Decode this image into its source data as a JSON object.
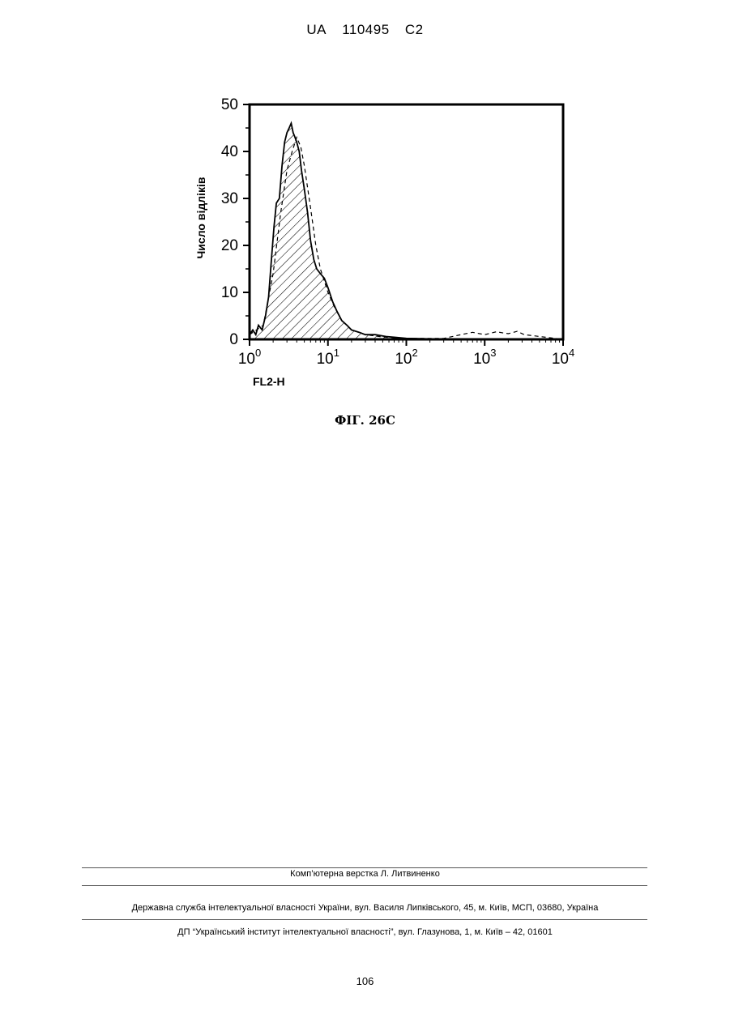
{
  "header": {
    "country": "UA",
    "number": "110495",
    "kind": "C2"
  },
  "chart_data": {
    "type": "area",
    "title": "",
    "xlabel": "FL2-H",
    "ylabel": "Число відліків",
    "xscale": "log",
    "xlim": [
      1,
      10000
    ],
    "ylim": [
      0,
      50
    ],
    "yticks": [
      "0",
      "10",
      "20",
      "30",
      "40",
      "50"
    ],
    "xticks": [
      {
        "base": "10",
        "exp": "0"
      },
      {
        "base": "10",
        "exp": "1"
      },
      {
        "base": "10",
        "exp": "2"
      },
      {
        "base": "10",
        "exp": "3"
      },
      {
        "base": "10",
        "exp": "4"
      }
    ],
    "grid": false,
    "series": [
      {
        "style": "solid-hatched",
        "x": [
          1.0,
          1.1,
          1.2,
          1.3,
          1.45,
          1.6,
          1.75,
          1.9,
          2.05,
          2.2,
          2.4,
          2.6,
          2.8,
          3.0,
          3.2,
          3.4,
          3.6,
          3.8,
          4.0,
          4.3,
          4.6,
          5.0,
          5.5,
          6.0,
          6.6,
          7.2,
          8.0,
          9.0,
          10.0,
          11.5,
          13.0,
          15.0,
          17.5,
          20.0,
          25.0,
          30.0,
          40.0,
          55.0,
          75.0,
          100.0,
          200.0,
          500.0,
          1000.0,
          3000.0,
          10000.0
        ],
        "y": [
          1,
          2,
          1,
          3,
          2,
          5,
          9,
          17,
          24,
          29,
          30,
          37,
          42,
          44,
          45,
          46,
          44,
          43,
          42,
          40,
          36,
          32,
          27,
          21,
          17,
          15,
          14,
          13,
          11,
          8,
          6,
          4,
          3,
          2,
          1.5,
          1,
          1,
          0.6,
          0.4,
          0.2,
          0.1,
          0.1,
          0,
          0,
          0
        ]
      },
      {
        "style": "dashed",
        "x": [
          1.0,
          1.5,
          2.0,
          2.5,
          3.0,
          3.5,
          4.0,
          4.5,
          5.0,
          6.0,
          7.0,
          8.0,
          10.0,
          12.0,
          15.0,
          20.0,
          30.0,
          50.0,
          100.0,
          300.0,
          500.0,
          700.0,
          1000.0,
          1400.0,
          2000.0,
          2600.0,
          3200.0,
          10000.0
        ],
        "y": [
          1,
          3,
          14,
          27,
          36,
          40,
          43,
          41,
          37,
          28,
          20,
          15,
          10,
          7,
          4,
          2,
          1,
          0.5,
          0.2,
          0.2,
          1,
          1.5,
          1,
          1.6,
          1.2,
          1.7,
          1,
          0
        ]
      }
    ]
  },
  "figure_caption": "ФІГ. 26С",
  "footer": {
    "layout": "Комп’ютерна верстка Л. Литвиненко",
    "agency": "Державна служба інтелектуальної власності України, вул. Василя Липківського, 45, м. Київ, МСП, 03680, Україна",
    "institute": "ДП “Український інститут інтелектуальної власності”, вул. Глазунова, 1, м. Київ – 42, 01601"
  },
  "page_number": "106"
}
